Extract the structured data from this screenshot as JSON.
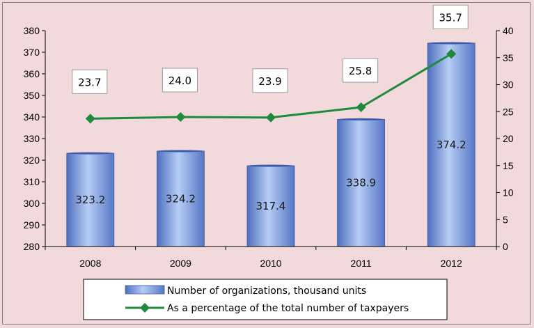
{
  "chart_data": {
    "type": "bar",
    "categories": [
      "2008",
      "2009",
      "2010",
      "2011",
      "2012"
    ],
    "series": [
      {
        "name": "Number of organizations, thousand units",
        "type": "bar",
        "axis": "left",
        "values": [
          323.2,
          324.2,
          317.4,
          338.9,
          374.2
        ],
        "labels": [
          "323.2",
          "324.2",
          "317.4",
          "338.9",
          "374.2"
        ],
        "color": "#7f9fde"
      },
      {
        "name": "As a percentage of the total number of taxpayers",
        "type": "line",
        "axis": "right",
        "values": [
          23.7,
          24.0,
          23.9,
          25.8,
          35.7
        ],
        "labels": [
          "23.7",
          "24.0",
          "23.9",
          "25.8",
          "35.7"
        ],
        "color": "#1e8a3c"
      }
    ],
    "y_left": {
      "min": 280,
      "max": 380,
      "step": 10
    },
    "y_right": {
      "min": 0,
      "max": 40,
      "step": 5
    },
    "grid": false,
    "legend": "bottom"
  }
}
